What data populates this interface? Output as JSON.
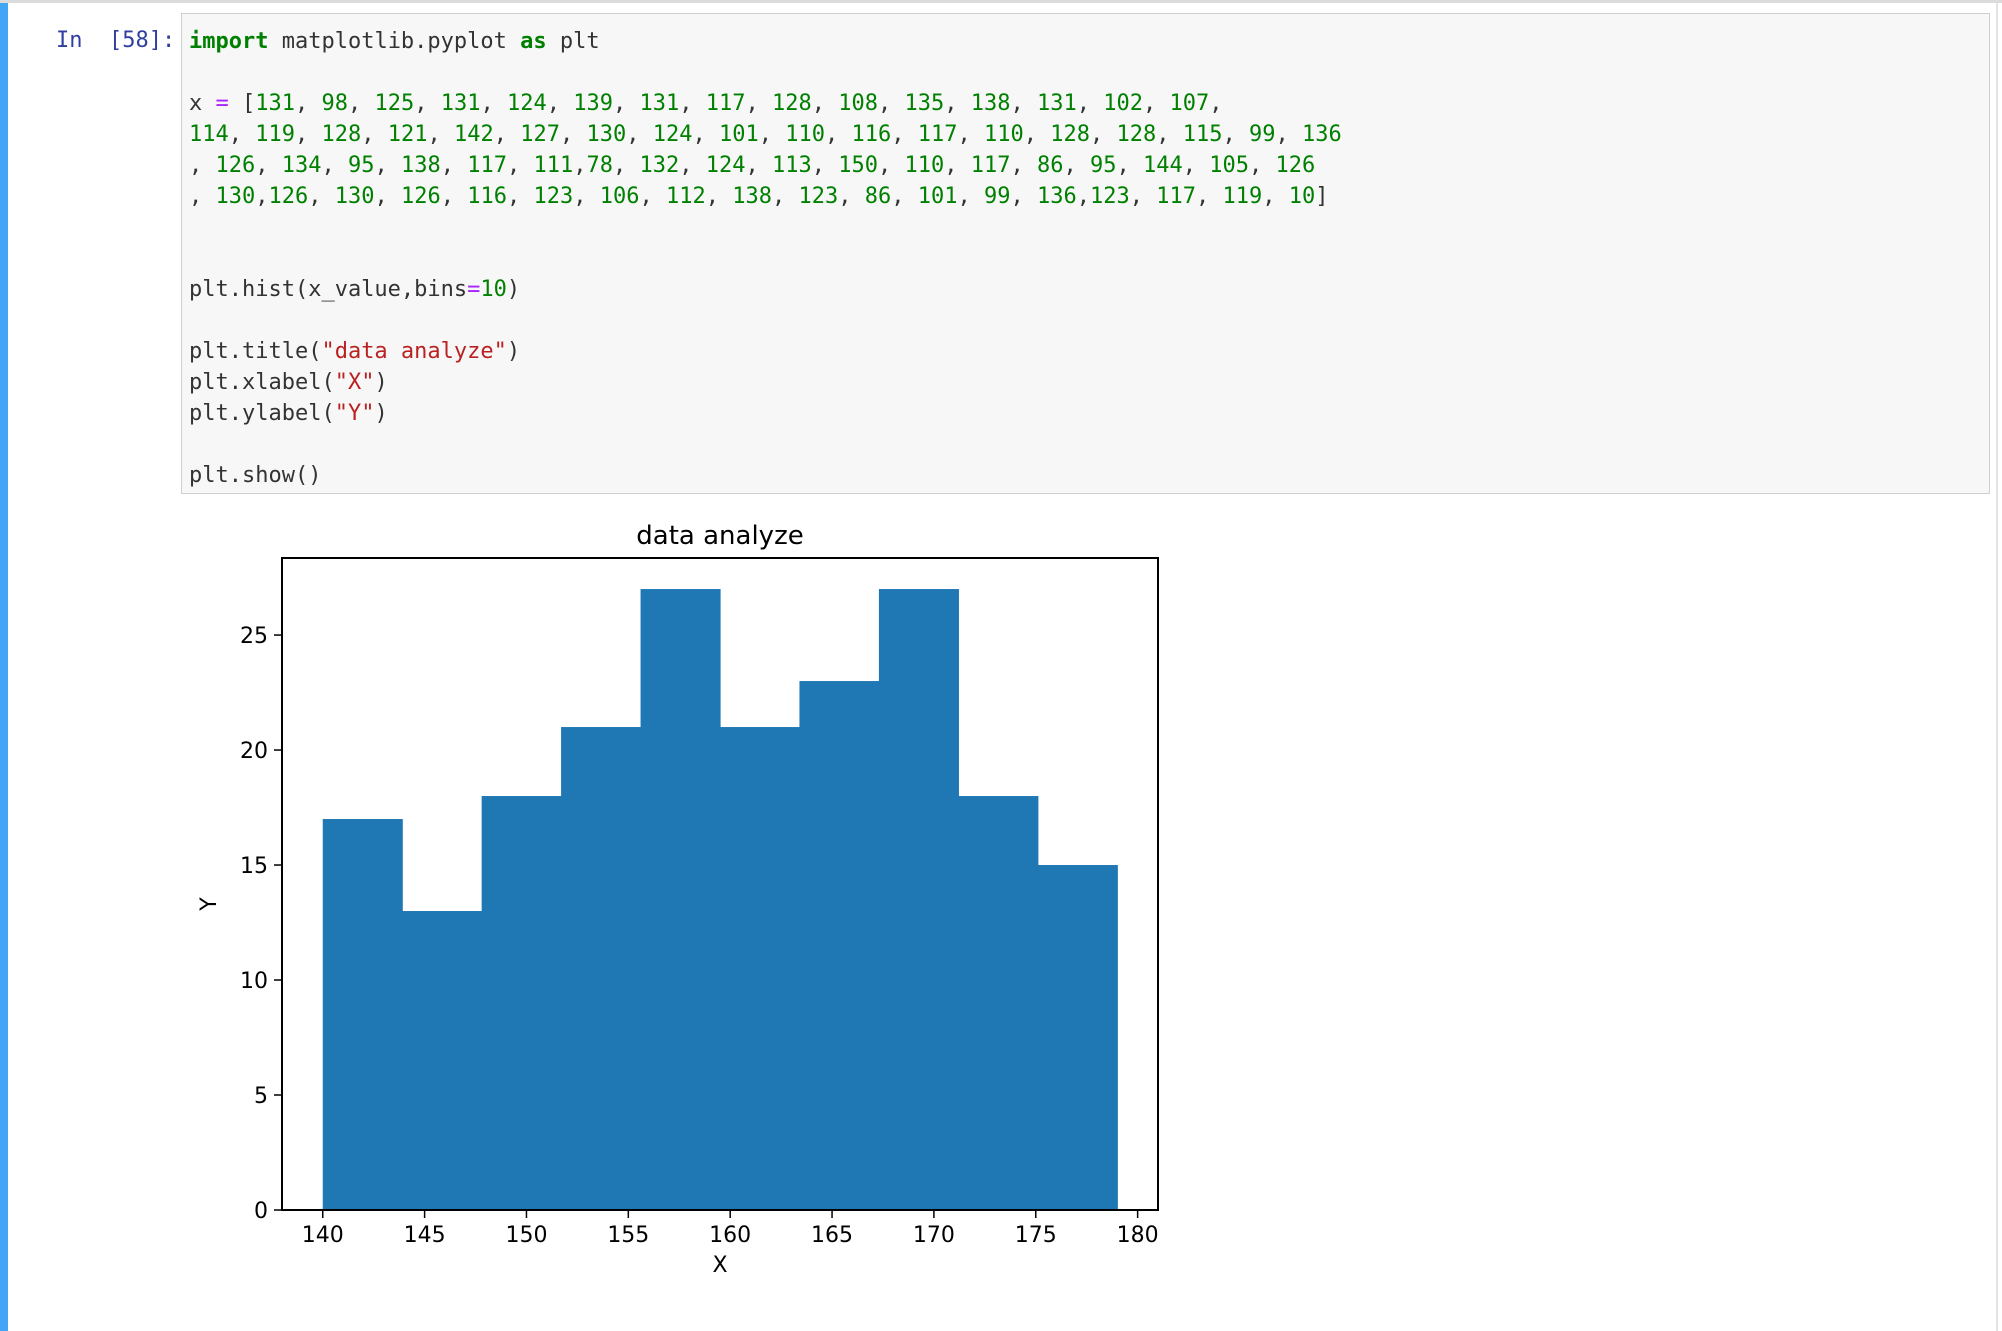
{
  "cell": {
    "prompt": "In  [58]:",
    "code_lines": [
      [
        {
          "c": "kw",
          "t": "import"
        },
        {
          "c": "",
          "t": " matplotlib.pyplot "
        },
        {
          "c": "kw",
          "t": "as"
        },
        {
          "c": "",
          "t": " plt"
        }
      ],
      [],
      [
        {
          "c": "",
          "t": "x "
        },
        {
          "c": "op",
          "t": "="
        },
        {
          "c": "",
          "t": " ["
        },
        {
          "c": "num",
          "t": "131"
        },
        {
          "c": "",
          "t": ", "
        },
        {
          "c": "num",
          "t": "98"
        },
        {
          "c": "",
          "t": ", "
        },
        {
          "c": "num",
          "t": "125"
        },
        {
          "c": "",
          "t": ", "
        },
        {
          "c": "num",
          "t": "131"
        },
        {
          "c": "",
          "t": ", "
        },
        {
          "c": "num",
          "t": "124"
        },
        {
          "c": "",
          "t": ", "
        },
        {
          "c": "num",
          "t": "139"
        },
        {
          "c": "",
          "t": ", "
        },
        {
          "c": "num",
          "t": "131"
        },
        {
          "c": "",
          "t": ", "
        },
        {
          "c": "num",
          "t": "117"
        },
        {
          "c": "",
          "t": ", "
        },
        {
          "c": "num",
          "t": "128"
        },
        {
          "c": "",
          "t": ", "
        },
        {
          "c": "num",
          "t": "108"
        },
        {
          "c": "",
          "t": ", "
        },
        {
          "c": "num",
          "t": "135"
        },
        {
          "c": "",
          "t": ", "
        },
        {
          "c": "num",
          "t": "138"
        },
        {
          "c": "",
          "t": ", "
        },
        {
          "c": "num",
          "t": "131"
        },
        {
          "c": "",
          "t": ", "
        },
        {
          "c": "num",
          "t": "102"
        },
        {
          "c": "",
          "t": ", "
        },
        {
          "c": "num",
          "t": "107"
        },
        {
          "c": "",
          "t": ","
        }
      ],
      [
        {
          "c": "num",
          "t": "114"
        },
        {
          "c": "",
          "t": ", "
        },
        {
          "c": "num",
          "t": "119"
        },
        {
          "c": "",
          "t": ", "
        },
        {
          "c": "num",
          "t": "128"
        },
        {
          "c": "",
          "t": ", "
        },
        {
          "c": "num",
          "t": "121"
        },
        {
          "c": "",
          "t": ", "
        },
        {
          "c": "num",
          "t": "142"
        },
        {
          "c": "",
          "t": ", "
        },
        {
          "c": "num",
          "t": "127"
        },
        {
          "c": "",
          "t": ", "
        },
        {
          "c": "num",
          "t": "130"
        },
        {
          "c": "",
          "t": ", "
        },
        {
          "c": "num",
          "t": "124"
        },
        {
          "c": "",
          "t": ", "
        },
        {
          "c": "num",
          "t": "101"
        },
        {
          "c": "",
          "t": ", "
        },
        {
          "c": "num",
          "t": "110"
        },
        {
          "c": "",
          "t": ", "
        },
        {
          "c": "num",
          "t": "116"
        },
        {
          "c": "",
          "t": ", "
        },
        {
          "c": "num",
          "t": "117"
        },
        {
          "c": "",
          "t": ", "
        },
        {
          "c": "num",
          "t": "110"
        },
        {
          "c": "",
          "t": ", "
        },
        {
          "c": "num",
          "t": "128"
        },
        {
          "c": "",
          "t": ", "
        },
        {
          "c": "num",
          "t": "128"
        },
        {
          "c": "",
          "t": ", "
        },
        {
          "c": "num",
          "t": "115"
        },
        {
          "c": "",
          "t": ", "
        },
        {
          "c": "num",
          "t": "99"
        },
        {
          "c": "",
          "t": ", "
        },
        {
          "c": "num",
          "t": "136"
        }
      ],
      [
        {
          "c": "",
          "t": ", "
        },
        {
          "c": "num",
          "t": "126"
        },
        {
          "c": "",
          "t": ", "
        },
        {
          "c": "num",
          "t": "134"
        },
        {
          "c": "",
          "t": ", "
        },
        {
          "c": "num",
          "t": "95"
        },
        {
          "c": "",
          "t": ", "
        },
        {
          "c": "num",
          "t": "138"
        },
        {
          "c": "",
          "t": ", "
        },
        {
          "c": "num",
          "t": "117"
        },
        {
          "c": "",
          "t": ", "
        },
        {
          "c": "num",
          "t": "111"
        },
        {
          "c": "",
          "t": ","
        },
        {
          "c": "num",
          "t": "78"
        },
        {
          "c": "",
          "t": ", "
        },
        {
          "c": "num",
          "t": "132"
        },
        {
          "c": "",
          "t": ", "
        },
        {
          "c": "num",
          "t": "124"
        },
        {
          "c": "",
          "t": ", "
        },
        {
          "c": "num",
          "t": "113"
        },
        {
          "c": "",
          "t": ", "
        },
        {
          "c": "num",
          "t": "150"
        },
        {
          "c": "",
          "t": ", "
        },
        {
          "c": "num",
          "t": "110"
        },
        {
          "c": "",
          "t": ", "
        },
        {
          "c": "num",
          "t": "117"
        },
        {
          "c": "",
          "t": ", "
        },
        {
          "c": "num",
          "t": "86"
        },
        {
          "c": "",
          "t": ", "
        },
        {
          "c": "num",
          "t": "95"
        },
        {
          "c": "",
          "t": ", "
        },
        {
          "c": "num",
          "t": "144"
        },
        {
          "c": "",
          "t": ", "
        },
        {
          "c": "num",
          "t": "105"
        },
        {
          "c": "",
          "t": ", "
        },
        {
          "c": "num",
          "t": "126"
        }
      ],
      [
        {
          "c": "",
          "t": ", "
        },
        {
          "c": "num",
          "t": "130"
        },
        {
          "c": "",
          "t": ","
        },
        {
          "c": "num",
          "t": "126"
        },
        {
          "c": "",
          "t": ", "
        },
        {
          "c": "num",
          "t": "130"
        },
        {
          "c": "",
          "t": ", "
        },
        {
          "c": "num",
          "t": "126"
        },
        {
          "c": "",
          "t": ", "
        },
        {
          "c": "num",
          "t": "116"
        },
        {
          "c": "",
          "t": ", "
        },
        {
          "c": "num",
          "t": "123"
        },
        {
          "c": "",
          "t": ", "
        },
        {
          "c": "num",
          "t": "106"
        },
        {
          "c": "",
          "t": ", "
        },
        {
          "c": "num",
          "t": "112"
        },
        {
          "c": "",
          "t": ", "
        },
        {
          "c": "num",
          "t": "138"
        },
        {
          "c": "",
          "t": ", "
        },
        {
          "c": "num",
          "t": "123"
        },
        {
          "c": "",
          "t": ", "
        },
        {
          "c": "num",
          "t": "86"
        },
        {
          "c": "",
          "t": ", "
        },
        {
          "c": "num",
          "t": "101"
        },
        {
          "c": "",
          "t": ", "
        },
        {
          "c": "num",
          "t": "99"
        },
        {
          "c": "",
          "t": ", "
        },
        {
          "c": "num",
          "t": "136"
        },
        {
          "c": "",
          "t": ","
        },
        {
          "c": "num",
          "t": "123"
        },
        {
          "c": "",
          "t": ", "
        },
        {
          "c": "num",
          "t": "117"
        },
        {
          "c": "",
          "t": ", "
        },
        {
          "c": "num",
          "t": "119"
        },
        {
          "c": "",
          "t": ", "
        },
        {
          "c": "num",
          "t": "10"
        },
        {
          "c": "",
          "t": "]"
        }
      ],
      [],
      [],
      [
        {
          "c": "",
          "t": "plt.hist(x_value,bins"
        },
        {
          "c": "op",
          "t": "="
        },
        {
          "c": "num",
          "t": "10"
        },
        {
          "c": "",
          "t": ")"
        }
      ],
      [],
      [
        {
          "c": "",
          "t": "plt.title("
        },
        {
          "c": "str",
          "t": "\"data analyze\""
        },
        {
          "c": "",
          "t": ")"
        }
      ],
      [
        {
          "c": "",
          "t": "plt.xlabel("
        },
        {
          "c": "str",
          "t": "\"X\""
        },
        {
          "c": "",
          "t": ")"
        }
      ],
      [
        {
          "c": "",
          "t": "plt.ylabel("
        },
        {
          "c": "str",
          "t": "\"Y\""
        },
        {
          "c": "",
          "t": ")"
        }
      ],
      [],
      [
        {
          "c": "",
          "t": "plt.show()"
        }
      ]
    ]
  },
  "chart_data": {
    "type": "bar",
    "title": "data analyze",
    "xlabel": "X",
    "ylabel": "Y",
    "bins": [
      {
        "x0": 140,
        "x1": 143.9,
        "count": 17
      },
      {
        "x0": 143.9,
        "x1": 147.8,
        "count": 13
      },
      {
        "x0": 147.8,
        "x1": 151.7,
        "count": 18
      },
      {
        "x0": 151.7,
        "x1": 155.6,
        "count": 21
      },
      {
        "x0": 155.6,
        "x1": 159.5,
        "count": 27
      },
      {
        "x0": 159.5,
        "x1": 163.4,
        "count": 21
      },
      {
        "x0": 163.4,
        "x1": 167.3,
        "count": 23
      },
      {
        "x0": 167.3,
        "x1": 171.2,
        "count": 27
      },
      {
        "x0": 171.2,
        "x1": 175.1,
        "count": 18
      },
      {
        "x0": 175.1,
        "x1": 179,
        "count": 15
      }
    ],
    "xlim": [
      138,
      181
    ],
    "ylim": [
      0,
      28.35
    ],
    "xticks": [
      140,
      145,
      150,
      155,
      160,
      165,
      170,
      175,
      180
    ],
    "yticks": [
      0,
      5,
      10,
      15,
      20,
      25
    ],
    "bar_color": "#1f77b4",
    "grid": false
  }
}
